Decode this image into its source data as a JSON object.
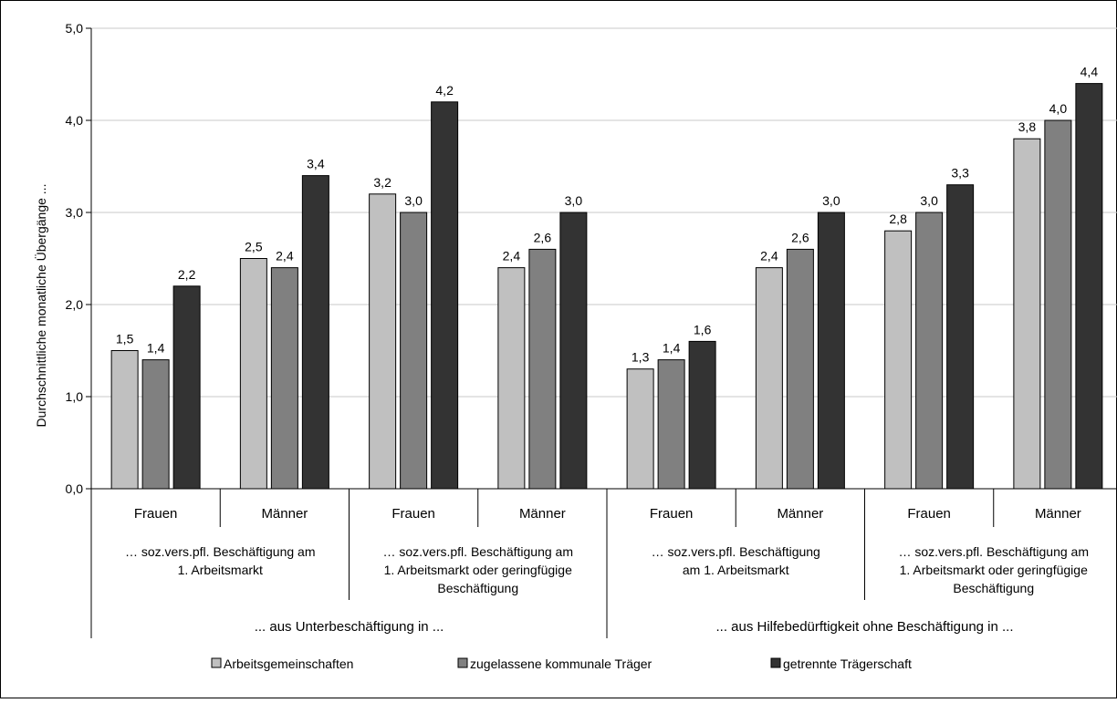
{
  "chart_data": {
    "type": "bar",
    "ylabel": "Durchschnittliche monatliche Übergänge ...",
    "ylim": [
      0,
      5
    ],
    "yticks": [
      "0,0",
      "1,0",
      "2,0",
      "3,0",
      "4,0",
      "5,0"
    ],
    "grid": true,
    "legend_position": "bottom",
    "categories": [
      {
        "sex": "Frauen",
        "subgroup": "… soz.vers.pfl. Beschäftigung am 1. Arbeitsmarkt",
        "group": "... aus Unterbeschäftigung in ..."
      },
      {
        "sex": "Männer",
        "subgroup": "… soz.vers.pfl. Beschäftigung am 1. Arbeitsmarkt",
        "group": "... aus Unterbeschäftigung in ..."
      },
      {
        "sex": "Frauen",
        "subgroup": "… soz.vers.pfl. Beschäftigung am 1. Arbeitsmarkt oder geringfügige Beschäftigung",
        "group": "... aus Unterbeschäftigung in ..."
      },
      {
        "sex": "Männer",
        "subgroup": "… soz.vers.pfl. Beschäftigung am 1. Arbeitsmarkt oder geringfügige Beschäftigung",
        "group": "... aus Unterbeschäftigung in ..."
      },
      {
        "sex": "Frauen",
        "subgroup": "… soz.vers.pfl. Beschäftigung am 1. Arbeitsmarkt",
        "group": "... aus Hilfebedürftigkeit ohne Beschäftigung in ..."
      },
      {
        "sex": "Männer",
        "subgroup": "… soz.vers.pfl. Beschäftigung am 1. Arbeitsmarkt",
        "group": "... aus Hilfebedürftigkeit ohne Beschäftigung in ..."
      },
      {
        "sex": "Frauen",
        "subgroup": "… soz.vers.pfl. Beschäftigung am 1. Arbeitsmarkt oder geringfügige Beschäftigung",
        "group": "... aus Hilfebedürftigkeit ohne Beschäftigung in ..."
      },
      {
        "sex": "Männer",
        "subgroup": "… soz.vers.pfl. Beschäftigung am 1. Arbeitsmarkt oder geringfügige Beschäftigung",
        "group": "... aus Hilfebedürftigkeit ohne Beschäftigung in ..."
      }
    ],
    "subgroup_label_lines": [
      [
        "… soz.vers.pfl. Beschäftigung am",
        "1. Arbeitsmarkt"
      ],
      [
        "… soz.vers.pfl. Beschäftigung am",
        "1. Arbeitsmarkt oder geringfügige",
        "Beschäftigung"
      ],
      [
        "… soz.vers.pfl. Beschäftigung",
        "am 1. Arbeitsmarkt"
      ],
      [
        "… soz.vers.pfl. Beschäftigung am",
        "1. Arbeitsmarkt oder geringfügige",
        "Beschäftigung"
      ]
    ],
    "groups": [
      "... aus Unterbeschäftigung in ...",
      "... aus Hilfebedürftigkeit ohne Beschäftigung in ..."
    ],
    "series": [
      {
        "name": "Arbeitsgemeinschaften",
        "color": "#c0c0c0",
        "values": [
          1.5,
          2.5,
          3.2,
          2.4,
          1.3,
          2.4,
          2.8,
          3.8
        ],
        "labels": [
          "1,5",
          "2,5",
          "3,2",
          "2,4",
          "1,3",
          "2,4",
          "2,8",
          "3,8"
        ]
      },
      {
        "name": "zugelassene kommunale Träger",
        "color": "#808080",
        "values": [
          1.4,
          2.4,
          3.0,
          2.6,
          1.4,
          2.6,
          3.0,
          4.0
        ],
        "labels": [
          "1,4",
          "2,4",
          "3,0",
          "2,6",
          "1,4",
          "2,6",
          "3,0",
          "4,0"
        ]
      },
      {
        "name": "getrennte Trägerschaft",
        "color": "#333333",
        "values": [
          2.2,
          3.4,
          4.2,
          3.0,
          1.6,
          3.0,
          3.3,
          4.4
        ],
        "labels": [
          "2,2",
          "3,4",
          "4,2",
          "3,0",
          "1,6",
          "3,0",
          "3,3",
          "4,4"
        ]
      }
    ]
  }
}
